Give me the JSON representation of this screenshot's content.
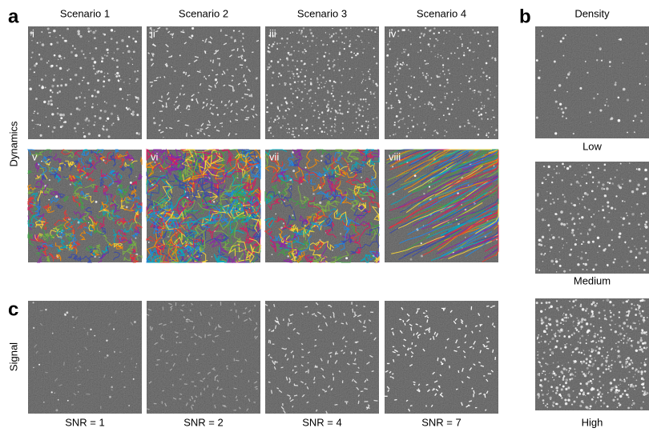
{
  "panel_a": {
    "label": "a",
    "column_titles": [
      "Scenario 1",
      "Scenario 2",
      "Scenario 3",
      "Scenario 4"
    ],
    "row_label": "Dynamics",
    "numerals": [
      "i",
      "ii",
      "iii",
      "iv",
      "v",
      "vi",
      "vii",
      "viii"
    ]
  },
  "panel_b": {
    "label": "b",
    "title": "Density",
    "levels": [
      "Low",
      "Medium",
      "High"
    ]
  },
  "panel_c": {
    "label": "c",
    "row_label": "Signal",
    "snr_labels": [
      "SNR = 1",
      "SNR = 2",
      "SNR = 4",
      "SNR = 7"
    ]
  }
}
